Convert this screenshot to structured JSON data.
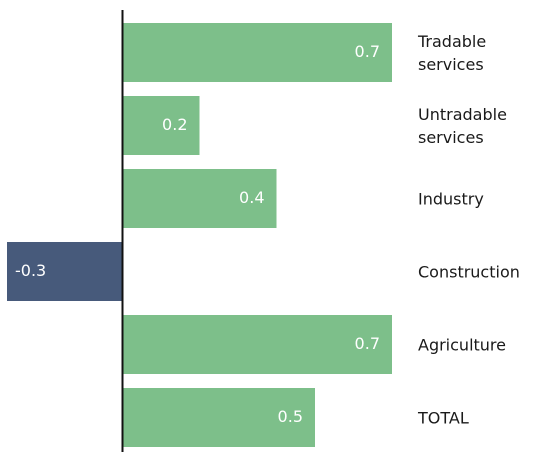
{
  "chart_data": {
    "type": "hbar",
    "categories": [
      "Tradable services",
      "Untradable services",
      "Industry",
      "Construction",
      "Agriculture",
      "TOTAL"
    ],
    "values": [
      0.7,
      0.2,
      0.4,
      -0.3,
      0.7,
      0.5
    ],
    "color": "#7dbf8a",
    "negative_color": "#475a7b"
  }
}
